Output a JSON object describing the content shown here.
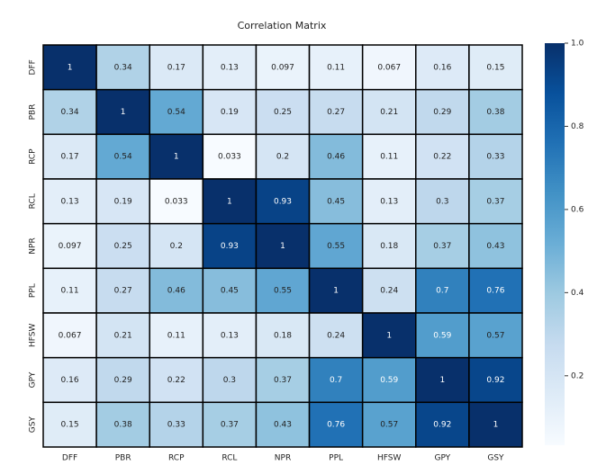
{
  "chart_data": {
    "type": "heatmap",
    "title": "Correlation Matrix",
    "x_categories": [
      "DFF",
      "PBR",
      "RCP",
      "RCL",
      "NPR",
      "PPL",
      "HFSW",
      "GPY",
      "GSY"
    ],
    "y_categories": [
      "DFF",
      "PBR",
      "RCP",
      "RCL",
      "NPR",
      "PPL",
      "HFSW",
      "GPY",
      "GSY"
    ],
    "values": [
      [
        1,
        0.34,
        0.17,
        0.13,
        0.097,
        0.11,
        0.067,
        0.16,
        0.15
      ],
      [
        0.34,
        1,
        0.54,
        0.19,
        0.25,
        0.27,
        0.21,
        0.29,
        0.38
      ],
      [
        0.17,
        0.54,
        1,
        0.033,
        0.2,
        0.46,
        0.11,
        0.22,
        0.33
      ],
      [
        0.13,
        0.19,
        0.033,
        1,
        0.93,
        0.45,
        0.13,
        0.3,
        0.37
      ],
      [
        0.097,
        0.25,
        0.2,
        0.93,
        1,
        0.55,
        0.18,
        0.37,
        0.43
      ],
      [
        0.11,
        0.27,
        0.46,
        0.45,
        0.55,
        1,
        0.24,
        0.7,
        0.76
      ],
      [
        0.067,
        0.21,
        0.11,
        0.13,
        0.18,
        0.24,
        1,
        0.59,
        0.57
      ],
      [
        0.16,
        0.29,
        0.22,
        0.3,
        0.37,
        0.7,
        0.59,
        1,
        0.92
      ],
      [
        0.15,
        0.38,
        0.33,
        0.37,
        0.43,
        0.76,
        0.57,
        0.92,
        1
      ]
    ],
    "colormap": [
      "#f7fbff",
      "#deebf7",
      "#c6dbef",
      "#9ecae1",
      "#6baed6",
      "#4292c6",
      "#2171b5",
      "#08519c",
      "#08306b"
    ],
    "clim": [
      0.033,
      1
    ],
    "cticks": [
      0.2,
      0.4,
      0.6,
      0.8,
      {
        "value": 1,
        "label": "1.0"
      }
    ]
  }
}
